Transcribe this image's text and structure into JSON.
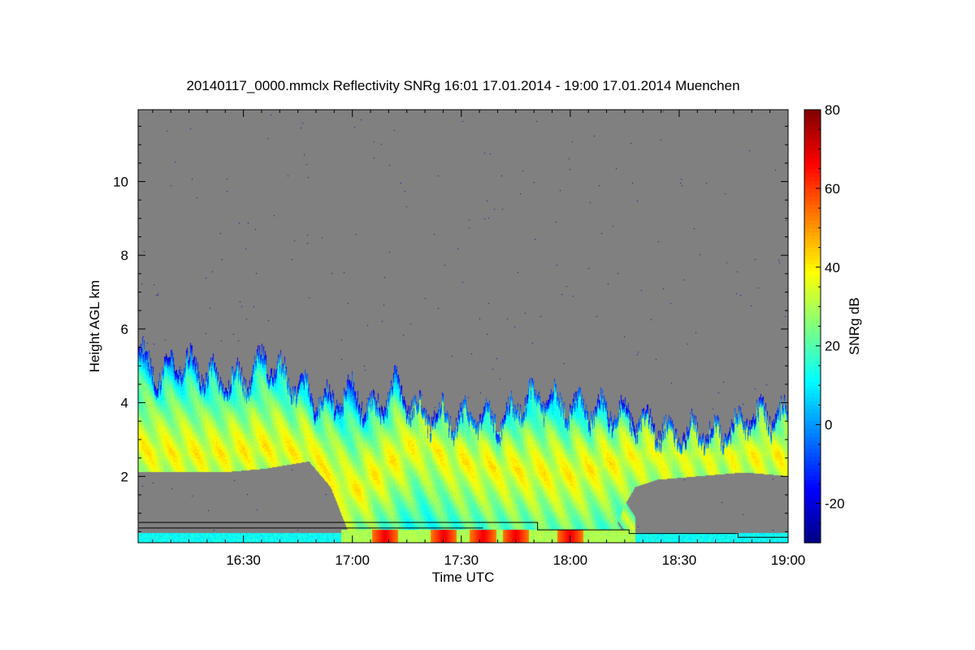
{
  "chart_data": {
    "type": "heatmap",
    "title": "20140117_0000.mmclx Reflectivity SNRg   16:01 17.01.2014 - 19:00 17.01.2014 Muenchen",
    "xlabel": "Time UTC",
    "ylabel": "Height AGL km",
    "xlim": [
      16.0167,
      19.0
    ],
    "ylim": [
      0.2,
      11.95
    ],
    "xticks": [
      {
        "value": 16.5,
        "label": "16:30"
      },
      {
        "value": 17.0,
        "label": "17:00"
      },
      {
        "value": 17.5,
        "label": "17:30"
      },
      {
        "value": 18.0,
        "label": "18:00"
      },
      {
        "value": 18.5,
        "label": "18:30"
      },
      {
        "value": 19.0,
        "label": "19:00"
      }
    ],
    "yticks": [
      {
        "value": 2,
        "label": "2"
      },
      {
        "value": 4,
        "label": "4"
      },
      {
        "value": 6,
        "label": "6"
      },
      {
        "value": 8,
        "label": "8"
      },
      {
        "value": 10,
        "label": "10"
      }
    ],
    "colorbar": {
      "label": "SNRg dB",
      "range": [
        -30,
        80
      ],
      "ticks": [
        {
          "value": -20,
          "label": "-20"
        },
        {
          "value": 0,
          "label": "0"
        },
        {
          "value": 20,
          "label": "20"
        },
        {
          "value": 40,
          "label": "40"
        },
        {
          "value": 60,
          "label": "60"
        },
        {
          "value": 80,
          "label": "80"
        }
      ]
    },
    "nodata_color": "#808080",
    "cloud_top_km": [
      [
        16.02,
        5.4
      ],
      [
        16.1,
        4.8
      ],
      [
        16.2,
        5.2
      ],
      [
        16.3,
        5.0
      ],
      [
        16.4,
        4.6
      ],
      [
        16.5,
        4.7
      ],
      [
        16.6,
        5.2
      ],
      [
        16.7,
        4.7
      ],
      [
        16.8,
        4.3
      ],
      [
        16.9,
        4.0
      ],
      [
        17.0,
        4.4
      ],
      [
        17.1,
        3.8
      ],
      [
        17.2,
        4.5
      ],
      [
        17.3,
        3.8
      ],
      [
        17.4,
        3.7
      ],
      [
        17.5,
        3.6
      ],
      [
        17.6,
        3.7
      ],
      [
        17.7,
        3.6
      ],
      [
        17.8,
        4.2
      ],
      [
        17.9,
        4.1
      ],
      [
        18.0,
        4.0
      ],
      [
        18.1,
        3.9
      ],
      [
        18.2,
        3.8
      ],
      [
        18.3,
        3.6
      ],
      [
        18.4,
        3.4
      ],
      [
        18.5,
        3.2
      ],
      [
        18.6,
        3.3
      ],
      [
        18.7,
        3.2
      ],
      [
        18.8,
        3.6
      ],
      [
        18.9,
        3.7
      ],
      [
        19.0,
        3.7
      ]
    ],
    "cloud_base_km": [
      [
        16.02,
        2.1
      ],
      [
        16.2,
        2.1
      ],
      [
        16.4,
        2.1
      ],
      [
        16.6,
        2.2
      ],
      [
        16.8,
        2.4
      ],
      [
        16.9,
        1.7
      ],
      [
        17.0,
        0.2
      ],
      [
        17.6,
        0.2
      ],
      [
        18.0,
        0.2
      ],
      [
        18.2,
        0.4
      ],
      [
        18.25,
        1.2
      ],
      [
        18.3,
        1.7
      ],
      [
        18.4,
        1.9
      ],
      [
        18.6,
        2.0
      ],
      [
        18.8,
        2.1
      ],
      [
        19.0,
        2.0
      ]
    ],
    "max_core_km": [
      [
        16.02,
        2.7
      ],
      [
        16.2,
        2.6
      ],
      [
        16.4,
        2.6
      ],
      [
        16.6,
        2.8
      ],
      [
        16.8,
        2.6
      ],
      [
        17.0,
        1.5
      ],
      [
        17.3,
        3.0
      ],
      [
        17.5,
        2.4
      ],
      [
        17.7,
        2.2
      ],
      [
        18.0,
        2.0
      ],
      [
        18.3,
        2.6
      ],
      [
        18.6,
        2.6
      ],
      [
        19.0,
        2.6
      ]
    ],
    "fall_streaks_start_hour": [
      16.9,
      17.05,
      17.2,
      17.3,
      17.4,
      17.5,
      17.6,
      17.7,
      17.8,
      17.9,
      18.0
    ],
    "surface_max_hours": [
      17.15,
      17.42,
      17.6,
      17.75,
      18.0
    ]
  }
}
